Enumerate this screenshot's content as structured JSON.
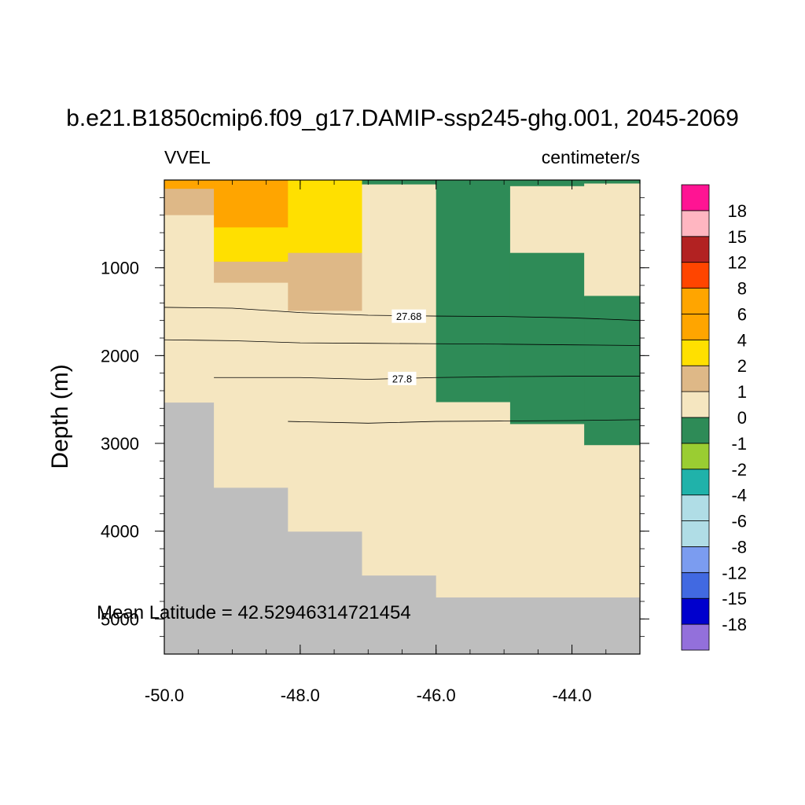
{
  "chart_data": {
    "type": "heatmap",
    "title": "b.e21.B1850cmip6.f09_g17.DAMIP-ssp245-ghg.001, 2045-2069",
    "left_label": "VVEL",
    "right_label": "centimeter/s",
    "ylabel": "Depth (m)",
    "xlabel": "",
    "xlim": [
      -50.0,
      -43.0
    ],
    "ylim": [
      5400,
      0
    ],
    "x_ticks": [
      -50.0,
      -48.0,
      -46.0,
      -44.0
    ],
    "x_tick_labels": [
      "-50.0",
      "-48.0",
      "-46.0",
      "-44.0"
    ],
    "y_ticks": [
      1000,
      2000,
      3000,
      4000,
      5000
    ],
    "y_tick_labels": [
      "1000",
      "2000",
      "3000",
      "4000",
      "5000"
    ],
    "x_edges": [
      -50.0,
      -49.27,
      -48.18,
      -47.09,
      -46.0,
      -44.91,
      -43.82,
      -43.0
    ],
    "land_color": "#bebebe",
    "columns": [
      {
        "segments": [
          [
            0,
            100,
            4
          ],
          [
            100,
            400,
            1
          ],
          [
            400,
            2530,
            0
          ]
        ],
        "bottom": 2530
      },
      {
        "segments": [
          [
            0,
            540,
            6
          ],
          [
            540,
            930,
            2
          ],
          [
            930,
            1170,
            1
          ],
          [
            1170,
            3500,
            0
          ]
        ],
        "bottom": 3500
      },
      {
        "segments": [
          [
            0,
            830,
            2
          ],
          [
            830,
            1490,
            1
          ],
          [
            1490,
            4000,
            0
          ]
        ],
        "bottom": 4000
      },
      {
        "segments": [
          [
            0,
            50,
            -1
          ],
          [
            50,
            4500,
            0
          ]
        ],
        "bottom": 4500
      },
      {
        "segments": [
          [
            0,
            2530,
            -1
          ],
          [
            2530,
            4750,
            0
          ]
        ],
        "bottom": 4750
      },
      {
        "segments": [
          [
            0,
            70,
            -1
          ],
          [
            70,
            830,
            0
          ],
          [
            830,
            2780,
            -1
          ],
          [
            2780,
            4750,
            0
          ]
        ],
        "bottom": 4750
      },
      {
        "segments": [
          [
            0,
            40,
            -1
          ],
          [
            40,
            1320,
            0
          ],
          [
            1320,
            3020,
            -1
          ],
          [
            3020,
            4750,
            0
          ]
        ],
        "bottom": 4750
      }
    ],
    "contours": [
      {
        "label": "",
        "points": [
          [
            -50.0,
            1450
          ],
          [
            -49.0,
            1460
          ],
          [
            -48.0,
            1510
          ],
          [
            -47.0,
            1540
          ],
          [
            -46.0,
            1550
          ],
          [
            -45.0,
            1555
          ],
          [
            -44.0,
            1570
          ],
          [
            -43.0,
            1600
          ]
        ]
      },
      {
        "label": "27.68",
        "label_x": -46.4,
        "label_y": 1555
      },
      {
        "label": "",
        "points": [
          [
            -50.0,
            1820
          ],
          [
            -49.0,
            1830
          ],
          [
            -48.0,
            1855
          ],
          [
            -47.0,
            1860
          ],
          [
            -46.0,
            1865
          ],
          [
            -45.0,
            1870
          ],
          [
            -44.0,
            1878
          ],
          [
            -43.0,
            1885
          ]
        ]
      },
      {
        "label": "",
        "points": [
          [
            -49.27,
            2250
          ],
          [
            -48.0,
            2250
          ],
          [
            -47.0,
            2270
          ],
          [
            -46.0,
            2250
          ],
          [
            -45.0,
            2240
          ],
          [
            -44.0,
            2235
          ],
          [
            -43.0,
            2235
          ]
        ]
      },
      {
        "label": "27.8",
        "label_x": -46.5,
        "label_y": 2265
      },
      {
        "label": "",
        "points": [
          [
            -48.18,
            2750
          ],
          [
            -47.0,
            2770
          ],
          [
            -46.0,
            2750
          ],
          [
            -45.0,
            2745
          ],
          [
            -44.0,
            2740
          ],
          [
            -43.0,
            2730
          ]
        ]
      }
    ],
    "colorbar": {
      "colors": [
        "#9370db",
        "#0000cd",
        "#4169e1",
        "#7b9cf0",
        "#b0dde6",
        "#b0dde6",
        "#20b2aa",
        "#9acd32",
        "#2e8b57",
        "#f5e6c0",
        "#deb887",
        "#ffe000",
        "#ffa500",
        "#ffa500",
        "#ff4500",
        "#b22222",
        "#ffb6c1",
        "#ff1493"
      ],
      "labels": [
        "-18",
        "-15",
        "-12",
        "-8",
        "-6",
        "-4",
        "-2",
        "-1",
        "0",
        "1",
        "2",
        "4",
        "6",
        "8",
        "12",
        "15",
        "18"
      ]
    },
    "annotation": "Mean Latitude = 42.52946314721454"
  }
}
